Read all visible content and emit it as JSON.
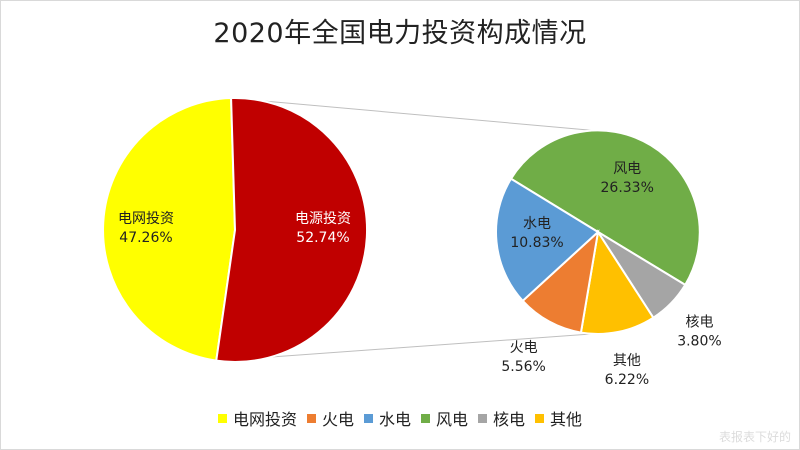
{
  "chart_data": {
    "type": "pie",
    "title": "2020年全国电力投资构成情况",
    "main_pie": {
      "slices": [
        {
          "key": "grid",
          "label": "电网投资",
          "value_text": "47.26%",
          "value": 47.26,
          "color": "#ffff00"
        },
        {
          "key": "source",
          "label": "电源投资",
          "value_text": "52.74%",
          "value": 52.74,
          "color": "#c00000"
        }
      ]
    },
    "secondary_pie": {
      "parent": "电源投资",
      "slices": [
        {
          "key": "wind",
          "label": "风电",
          "value_text": "26.33%",
          "value": 26.33,
          "color": "#70ad47"
        },
        {
          "key": "nuclear",
          "label": "核电",
          "value_text": "3.80%",
          "value": 3.8,
          "color": "#a5a5a5"
        },
        {
          "key": "other",
          "label": "其他",
          "value_text": "6.22%",
          "value": 6.22,
          "color": "#ffc000"
        },
        {
          "key": "thermal",
          "label": "火电",
          "value_text": "5.56%",
          "value": 5.56,
          "color": "#ed7d31"
        },
        {
          "key": "hydro",
          "label": "水电",
          "value_text": "10.83%",
          "value": 10.83,
          "color": "#5b9bd5"
        }
      ]
    },
    "legend": {
      "placement": "bottom",
      "items": [
        {
          "label": "电网投资",
          "color": "#ffff00"
        },
        {
          "label": "火电",
          "color": "#ed7d31"
        },
        {
          "label": "水电",
          "color": "#5b9bd5"
        },
        {
          "label": "风电",
          "color": "#70ad47"
        },
        {
          "label": "核电",
          "color": "#a5a5a5"
        },
        {
          "label": "其他",
          "color": "#ffc000"
        }
      ]
    }
  },
  "watermark": "表报表下好的"
}
